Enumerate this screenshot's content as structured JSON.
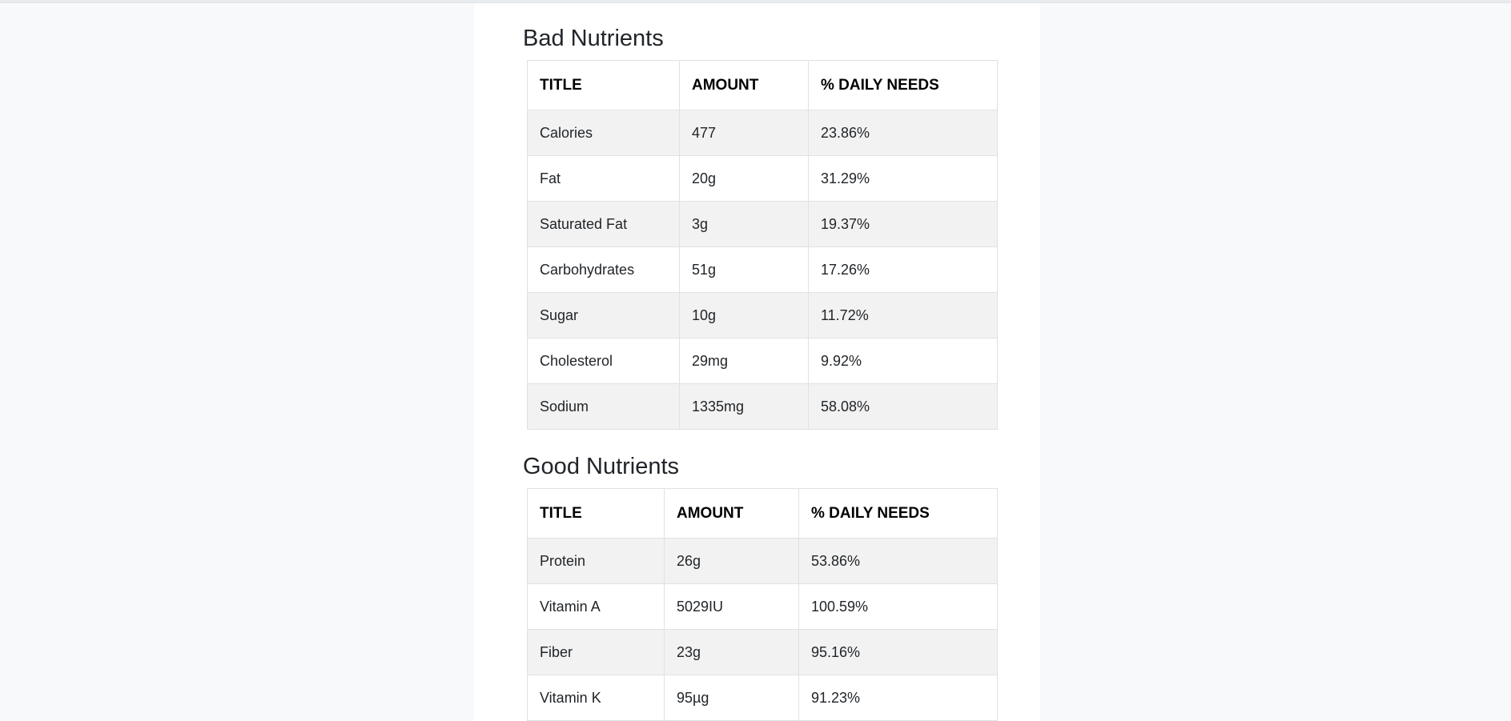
{
  "bad": {
    "title": "Bad Nutrients",
    "headers": {
      "title": "TITLE",
      "amount": "AMOUNT",
      "daily": "% DAILY NEEDS"
    },
    "rows": [
      {
        "title": "Calories",
        "amount": "477",
        "daily": "23.86%"
      },
      {
        "title": "Fat",
        "amount": "20g",
        "daily": "31.29%"
      },
      {
        "title": "Saturated Fat",
        "amount": "3g",
        "daily": "19.37%"
      },
      {
        "title": "Carbohydrates",
        "amount": "51g",
        "daily": "17.26%"
      },
      {
        "title": "Sugar",
        "amount": "10g",
        "daily": "11.72%"
      },
      {
        "title": "Cholesterol",
        "amount": "29mg",
        "daily": "9.92%"
      },
      {
        "title": "Sodium",
        "amount": "1335mg",
        "daily": "58.08%"
      }
    ]
  },
  "good": {
    "title": "Good Nutrients",
    "headers": {
      "title": "TITLE",
      "amount": "AMOUNT",
      "daily": "% DAILY NEEDS"
    },
    "rows": [
      {
        "title": "Protein",
        "amount": "26g",
        "daily": "53.86%"
      },
      {
        "title": "Vitamin A",
        "amount": "5029IU",
        "daily": "100.59%"
      },
      {
        "title": "Fiber",
        "amount": "23g",
        "daily": "95.16%"
      },
      {
        "title": "Vitamin K",
        "amount": "95µg",
        "daily": "91.23%"
      }
    ]
  }
}
